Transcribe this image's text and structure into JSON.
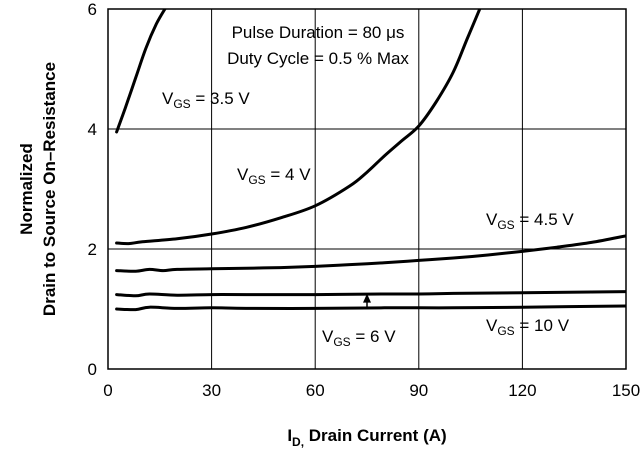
{
  "chart_data": {
    "type": "line",
    "title": "",
    "xlabel_main": "I",
    "xlabel_sub": "D,",
    "xlabel_rest": " Drain Current (A)",
    "ylabel_line1": "Normalized",
    "ylabel_line2": "Drain to Source On–Resistance",
    "xlim": [
      0,
      150
    ],
    "ylim": [
      0,
      6
    ],
    "x_ticks": [
      0,
      30,
      60,
      90,
      120,
      150
    ],
    "y_ticks": [
      0,
      2,
      4,
      6
    ],
    "grid": true,
    "annotations": {
      "pulse": "Pulse Duration = 80 μs",
      "duty": "Duty Cycle = 0.5 % Max"
    },
    "series": [
      {
        "name": "VGS = 3.5 V",
        "label_main": "V",
        "label_sub": "GS",
        "label_rest": " = 3.5 V",
        "x": [
          2.5,
          5,
          8,
          11,
          14,
          17
        ],
        "y": [
          3.95,
          4.35,
          4.85,
          5.35,
          5.75,
          6.05
        ]
      },
      {
        "name": "VGS = 4 V",
        "label_main": "V",
        "label_sub": "GS",
        "label_rest": " = 4 V",
        "x": [
          2.5,
          6,
          10,
          20,
          30,
          40,
          50,
          60,
          70,
          75,
          80,
          85,
          90,
          95,
          100,
          104,
          108
        ],
        "y": [
          2.1,
          2.09,
          2.12,
          2.17,
          2.25,
          2.36,
          2.52,
          2.72,
          3.05,
          3.28,
          3.55,
          3.8,
          4.05,
          4.45,
          4.95,
          5.5,
          6.05
        ]
      },
      {
        "name": "VGS = 4.5 V",
        "label_main": "V",
        "label_sub": "GS",
        "label_rest": " = 4.5 V",
        "x": [
          2.5,
          8,
          12,
          16,
          20,
          30,
          40,
          50,
          60,
          70,
          80,
          90,
          100,
          110,
          120,
          130,
          140,
          150
        ],
        "y": [
          1.64,
          1.63,
          1.66,
          1.64,
          1.66,
          1.67,
          1.68,
          1.69,
          1.71,
          1.74,
          1.77,
          1.81,
          1.85,
          1.9,
          1.96,
          2.03,
          2.11,
          2.22
        ]
      },
      {
        "name": "VGS = 6 V",
        "label_main": "V",
        "label_sub": "GS",
        "label_rest": " = 6 V",
        "x": [
          2.5,
          8,
          12,
          20,
          30,
          40,
          60,
          80,
          90,
          100,
          120,
          150
        ],
        "y": [
          1.24,
          1.22,
          1.25,
          1.23,
          1.24,
          1.24,
          1.24,
          1.25,
          1.25,
          1.26,
          1.27,
          1.29
        ]
      },
      {
        "name": "VGS = 10 V",
        "label_main": "V",
        "label_sub": "GS",
        "label_rest": " = 10 V",
        "x": [
          2.5,
          8,
          12,
          20,
          30,
          40,
          60,
          80,
          100,
          120,
          150
        ],
        "y": [
          1.0,
          0.99,
          1.03,
          1.01,
          1.02,
          1.01,
          1.01,
          1.02,
          1.02,
          1.03,
          1.05
        ]
      }
    ],
    "arrow": {
      "series": "VGS = 6 V",
      "x": 75,
      "y_from": 1.02,
      "y_to": 1.24
    }
  }
}
